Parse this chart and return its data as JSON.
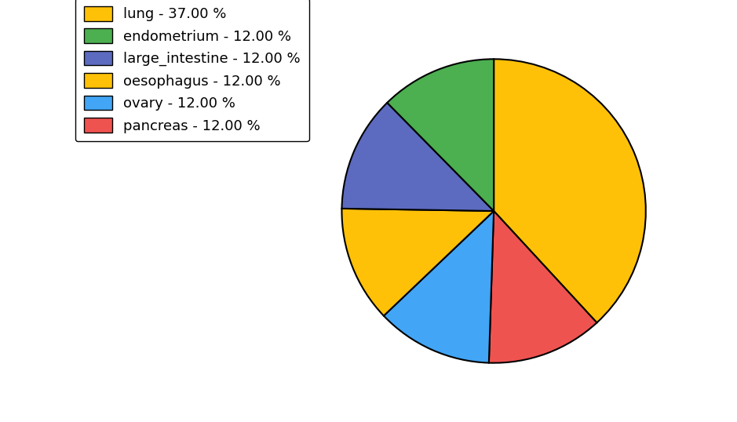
{
  "labels": [
    "lung",
    "pancreas",
    "ovary",
    "oesophagus",
    "large_intestine",
    "endometrium"
  ],
  "percentages": [
    37.0,
    12.0,
    12.0,
    12.0,
    12.0,
    12.0
  ],
  "colors": [
    "#FFC107",
    "#EF5350",
    "#42A5F5",
    "#FFC107",
    "#5C6BC0",
    "#4CAF50"
  ],
  "legend_labels": [
    "lung - 37.00 %",
    "endometrium - 12.00 %",
    "large_intestine - 12.00 %",
    "oesophagus - 12.00 %",
    "ovary - 12.00 %",
    "pancreas - 12.00 %"
  ],
  "legend_colors": [
    "#FFC107",
    "#4CAF50",
    "#5C6BC0",
    "#FFC107",
    "#42A5F5",
    "#EF5350"
  ],
  "startangle": 90,
  "counterclock": false,
  "background_color": "#ffffff",
  "figsize": [
    9.39,
    5.38
  ],
  "dpi": 100,
  "legend_fontsize": 13,
  "edge_color": "black",
  "edge_linewidth": 1.5
}
